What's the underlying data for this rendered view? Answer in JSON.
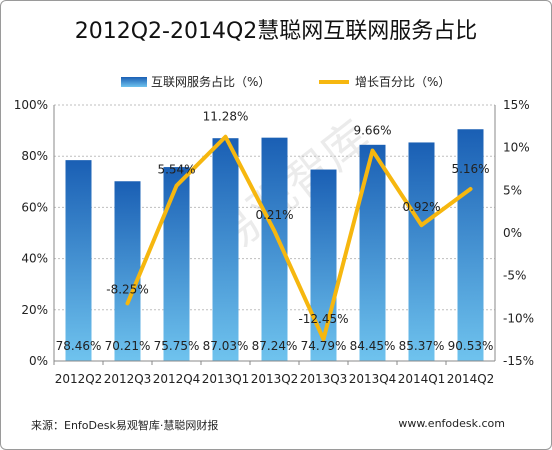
{
  "title": "2012Q2-2014Q2慧聪网互联网服务占比",
  "footer": {
    "source": "来源：EnfoDesk易观智库·慧聪网财报",
    "url": "www.enfodesk.com"
  },
  "watermark": "易观智库",
  "colors": {
    "bar_top": "#1a5fb4",
    "bar_bottom": "#6fc3ee",
    "line": "#f6b70f",
    "axis": "#888888",
    "grid": "#bfbfbf"
  },
  "chart_data": {
    "type": "bar",
    "categories": [
      "2012Q2",
      "2012Q3",
      "2012Q4",
      "2013Q1",
      "2013Q2",
      "2013Q3",
      "2013Q4",
      "2014Q1",
      "2014Q2"
    ],
    "series": [
      {
        "name": "互联网服务占比（%）",
        "type": "bar",
        "axis": "left",
        "values": [
          78.46,
          70.21,
          75.75,
          87.03,
          87.24,
          74.79,
          84.45,
          85.37,
          90.53
        ],
        "labels": [
          "78.46%",
          "70.21%",
          "75.75%",
          "87.03%",
          "87.24%",
          "74.79%",
          "84.45%",
          "85.37%",
          "90.53%"
        ]
      },
      {
        "name": "增长百分比（%）",
        "type": "line",
        "axis": "right",
        "x": [
          "2012Q3",
          "2012Q4",
          "2013Q1",
          "2013Q2",
          "2013Q3",
          "2013Q4",
          "2014Q1",
          "2014Q2"
        ],
        "values": [
          -8.25,
          5.54,
          11.28,
          0.21,
          -12.45,
          9.66,
          0.92,
          5.16
        ],
        "labels": [
          "-8.25%",
          "5.54%",
          "11.28%",
          "0.21%",
          "-12.45%",
          "9.66%",
          "0.92%",
          "5.16%"
        ]
      }
    ],
    "y_left": {
      "ylim": [
        0,
        100
      ],
      "ticks": [
        0,
        20,
        40,
        60,
        80,
        100
      ],
      "tick_labels": [
        "0%",
        "20%",
        "40%",
        "60%",
        "80%",
        "100%"
      ]
    },
    "y_right": {
      "ylim": [
        -15,
        15
      ],
      "ticks": [
        -15,
        -10,
        -5,
        0,
        5,
        10,
        15
      ],
      "tick_labels": [
        "-15%",
        "-10%",
        "-5%",
        "0%",
        "5%",
        "10%",
        "15%"
      ]
    },
    "grid": true,
    "legend_position": "top"
  }
}
